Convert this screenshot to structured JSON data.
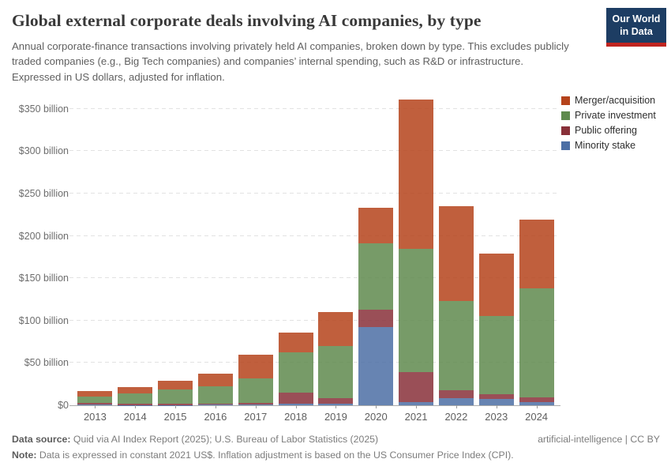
{
  "header": {
    "title": "Global external corporate deals involving AI companies, by type",
    "subtitle": "Annual corporate-finance transactions involving privately held AI companies, broken down by type. This excludes publicly traded companies (e.g., Big Tech companies) and companies’ internal spending, such as R&D or infrastructure. Expressed in US dollars, adjusted for inflation.",
    "logo": {
      "line1": "Our World",
      "line2": "in Data",
      "bg_color": "#1d3d63",
      "accent_color": "#c0241f"
    }
  },
  "chart_data": {
    "type": "bar",
    "stacked": true,
    "title": "Global external corporate deals involving AI companies, by type",
    "unit_prefix": "$",
    "unit_suffix": " billion",
    "categories": [
      "2013",
      "2014",
      "2015",
      "2016",
      "2017",
      "2018",
      "2019",
      "2020",
      "2021",
      "2022",
      "2023",
      "2024"
    ],
    "series": [
      {
        "name": "Minority stake",
        "color": "#4c6fa5",
        "values": [
          1.2,
          0.4,
          0.4,
          1.0,
          1.0,
          1.9,
          1.6,
          92.0,
          3.5,
          8.7,
          7.2,
          4.0
        ]
      },
      {
        "name": "Public offering",
        "color": "#883039",
        "values": [
          1.6,
          1.8,
          1.8,
          1.3,
          1.4,
          13.0,
          7.0,
          21.0,
          36.0,
          8.8,
          5.6,
          5.6
        ]
      },
      {
        "name": "Private investment",
        "color": "#5f8a4d",
        "values": [
          7.2,
          11.6,
          16.2,
          20.5,
          29.1,
          47.5,
          61.6,
          78.0,
          145.6,
          105.2,
          93.0,
          128.7
        ]
      },
      {
        "name": "Merger/acquisition",
        "color": "#b5431b",
        "values": [
          6.4,
          8.0,
          10.6,
          14.9,
          28.1,
          23.1,
          39.6,
          42.0,
          176.3,
          112.6,
          73.3,
          80.5
        ]
      }
    ],
    "legend_order": [
      "Merger/acquisition",
      "Private investment",
      "Public offering",
      "Minority stake"
    ],
    "legend_position": "right",
    "y_ticks": [
      {
        "value": 0,
        "label": "$0"
      },
      {
        "value": 50,
        "label": "$50 billion"
      },
      {
        "value": 100,
        "label": "$100 billion"
      },
      {
        "value": 150,
        "label": "$150 billion"
      },
      {
        "value": 200,
        "label": "$200 billion"
      },
      {
        "value": 250,
        "label": "$250 billion"
      },
      {
        "value": 300,
        "label": "$300 billion"
      },
      {
        "value": 350,
        "label": "$350 billion"
      }
    ],
    "ylim": [
      0,
      366
    ],
    "grid": "dashed horizontal gridlines",
    "xlabel": "",
    "ylabel": ""
  },
  "footer": {
    "source_label": "Data source:",
    "source_text": " Quid via AI Index Report (2025); U.S. Bureau of Labor Statistics (2025)",
    "attribution": "artificial-intelligence | CC BY",
    "note_label": "Note:",
    "note_text": " Data is expressed in constant 2021 US$. Inflation adjustment is based on the US Consumer Price Index (CPI)."
  }
}
